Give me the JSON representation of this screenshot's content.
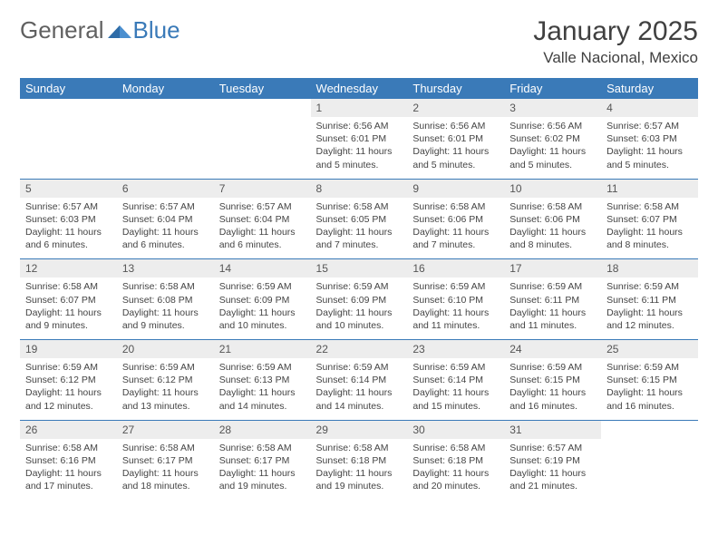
{
  "logo": {
    "text1": "General",
    "text2": "Blue"
  },
  "title": "January 2025",
  "location": "Valle Nacional, Mexico",
  "colors": {
    "header_bg": "#3a7ab8",
    "header_fg": "#ffffff",
    "daynum_bg": "#ededed",
    "text": "#444444",
    "rule": "#3a7ab8"
  },
  "day_names": [
    "Sunday",
    "Monday",
    "Tuesday",
    "Wednesday",
    "Thursday",
    "Friday",
    "Saturday"
  ],
  "weeks": [
    [
      null,
      null,
      null,
      {
        "n": "1",
        "sr": "6:56 AM",
        "ss": "6:01 PM",
        "dl": "11 hours and 5 minutes."
      },
      {
        "n": "2",
        "sr": "6:56 AM",
        "ss": "6:01 PM",
        "dl": "11 hours and 5 minutes."
      },
      {
        "n": "3",
        "sr": "6:56 AM",
        "ss": "6:02 PM",
        "dl": "11 hours and 5 minutes."
      },
      {
        "n": "4",
        "sr": "6:57 AM",
        "ss": "6:03 PM",
        "dl": "11 hours and 5 minutes."
      }
    ],
    [
      {
        "n": "5",
        "sr": "6:57 AM",
        "ss": "6:03 PM",
        "dl": "11 hours and 6 minutes."
      },
      {
        "n": "6",
        "sr": "6:57 AM",
        "ss": "6:04 PM",
        "dl": "11 hours and 6 minutes."
      },
      {
        "n": "7",
        "sr": "6:57 AM",
        "ss": "6:04 PM",
        "dl": "11 hours and 6 minutes."
      },
      {
        "n": "8",
        "sr": "6:58 AM",
        "ss": "6:05 PM",
        "dl": "11 hours and 7 minutes."
      },
      {
        "n": "9",
        "sr": "6:58 AM",
        "ss": "6:06 PM",
        "dl": "11 hours and 7 minutes."
      },
      {
        "n": "10",
        "sr": "6:58 AM",
        "ss": "6:06 PM",
        "dl": "11 hours and 8 minutes."
      },
      {
        "n": "11",
        "sr": "6:58 AM",
        "ss": "6:07 PM",
        "dl": "11 hours and 8 minutes."
      }
    ],
    [
      {
        "n": "12",
        "sr": "6:58 AM",
        "ss": "6:07 PM",
        "dl": "11 hours and 9 minutes."
      },
      {
        "n": "13",
        "sr": "6:58 AM",
        "ss": "6:08 PM",
        "dl": "11 hours and 9 minutes."
      },
      {
        "n": "14",
        "sr": "6:59 AM",
        "ss": "6:09 PM",
        "dl": "11 hours and 10 minutes."
      },
      {
        "n": "15",
        "sr": "6:59 AM",
        "ss": "6:09 PM",
        "dl": "11 hours and 10 minutes."
      },
      {
        "n": "16",
        "sr": "6:59 AM",
        "ss": "6:10 PM",
        "dl": "11 hours and 11 minutes."
      },
      {
        "n": "17",
        "sr": "6:59 AM",
        "ss": "6:11 PM",
        "dl": "11 hours and 11 minutes."
      },
      {
        "n": "18",
        "sr": "6:59 AM",
        "ss": "6:11 PM",
        "dl": "11 hours and 12 minutes."
      }
    ],
    [
      {
        "n": "19",
        "sr": "6:59 AM",
        "ss": "6:12 PM",
        "dl": "11 hours and 12 minutes."
      },
      {
        "n": "20",
        "sr": "6:59 AM",
        "ss": "6:12 PM",
        "dl": "11 hours and 13 minutes."
      },
      {
        "n": "21",
        "sr": "6:59 AM",
        "ss": "6:13 PM",
        "dl": "11 hours and 14 minutes."
      },
      {
        "n": "22",
        "sr": "6:59 AM",
        "ss": "6:14 PM",
        "dl": "11 hours and 14 minutes."
      },
      {
        "n": "23",
        "sr": "6:59 AM",
        "ss": "6:14 PM",
        "dl": "11 hours and 15 minutes."
      },
      {
        "n": "24",
        "sr": "6:59 AM",
        "ss": "6:15 PM",
        "dl": "11 hours and 16 minutes."
      },
      {
        "n": "25",
        "sr": "6:59 AM",
        "ss": "6:15 PM",
        "dl": "11 hours and 16 minutes."
      }
    ],
    [
      {
        "n": "26",
        "sr": "6:58 AM",
        "ss": "6:16 PM",
        "dl": "11 hours and 17 minutes."
      },
      {
        "n": "27",
        "sr": "6:58 AM",
        "ss": "6:17 PM",
        "dl": "11 hours and 18 minutes."
      },
      {
        "n": "28",
        "sr": "6:58 AM",
        "ss": "6:17 PM",
        "dl": "11 hours and 19 minutes."
      },
      {
        "n": "29",
        "sr": "6:58 AM",
        "ss": "6:18 PM",
        "dl": "11 hours and 19 minutes."
      },
      {
        "n": "30",
        "sr": "6:58 AM",
        "ss": "6:18 PM",
        "dl": "11 hours and 20 minutes."
      },
      {
        "n": "31",
        "sr": "6:57 AM",
        "ss": "6:19 PM",
        "dl": "11 hours and 21 minutes."
      },
      null
    ]
  ],
  "labels": {
    "sunrise": "Sunrise:",
    "sunset": "Sunset:",
    "daylight": "Daylight:"
  }
}
